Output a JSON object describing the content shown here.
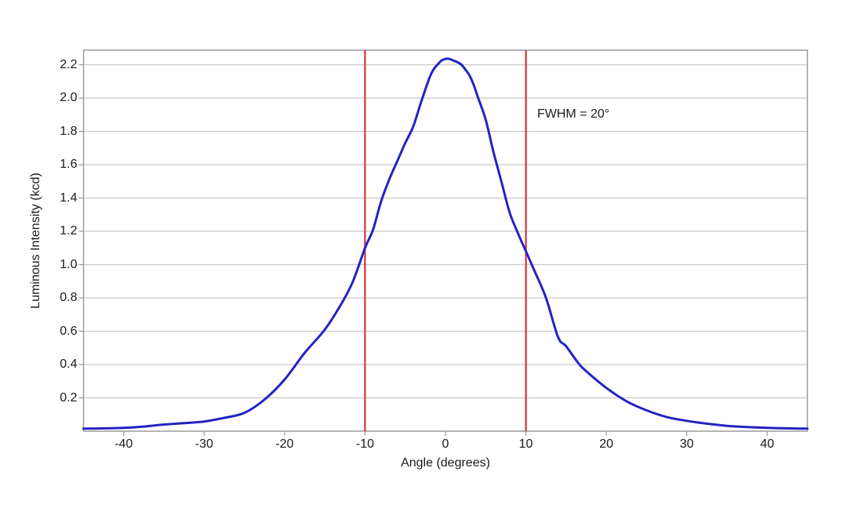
{
  "chart_data": {
    "type": "line",
    "title": "",
    "xlabel": "Angle (degrees)",
    "ylabel": "Luminous Intensity (kcd)",
    "xlim": [
      -45,
      45
    ],
    "ylim": [
      0,
      2.2875
    ],
    "grid": "horizontal-only",
    "legend": "none",
    "x_ticks": [
      -40,
      -30,
      -20,
      -10,
      0,
      10,
      20,
      30,
      40
    ],
    "x_tick_labels": [
      "-40",
      "-30",
      "-20",
      "-10",
      "0",
      "10",
      "20",
      "30",
      "40"
    ],
    "y_ticks": [
      0.2,
      0.4,
      0.6,
      0.8,
      1.0,
      1.2,
      1.4,
      1.6,
      1.8,
      2.0,
      2.2
    ],
    "y_tick_labels": [
      "0.2",
      "0.4",
      "0.6",
      "0.8",
      "1.0",
      "1.2",
      "1.4",
      "1.6",
      "1.8",
      "2.0",
      "2.2"
    ],
    "series": [
      {
        "name": "luminous-intensity-curve",
        "color": "#2323c3",
        "peak_kcd": 2.235,
        "x": [
          -45,
          -42.5,
          -40,
          -37.5,
          -35,
          -32.5,
          -30,
          -27.5,
          -25,
          -22.5,
          -20,
          -17.5,
          -15,
          -13,
          -11.5,
          -10,
          -9,
          -8,
          -7,
          -6,
          -5,
          -4,
          -3,
          -2,
          -1.5,
          -1,
          -0.5,
          0,
          0.5,
          1,
          1.5,
          2,
          2.5,
          3,
          3.5,
          4,
          5,
          6,
          7,
          8,
          9,
          10,
          11,
          12.5,
          14,
          15,
          16.5,
          17.5,
          20,
          22.5,
          25,
          27.5,
          30,
          32.5,
          35,
          37.5,
          40,
          42.5,
          45
        ],
        "y": [
          0.015,
          0.017,
          0.02,
          0.028,
          0.04,
          0.048,
          0.058,
          0.08,
          0.11,
          0.19,
          0.31,
          0.47,
          0.61,
          0.76,
          0.9,
          1.1,
          1.21,
          1.38,
          1.51,
          1.62,
          1.73,
          1.83,
          1.98,
          2.12,
          2.17,
          2.2,
          2.225,
          2.235,
          2.235,
          2.225,
          2.215,
          2.2,
          2.17,
          2.135,
          2.08,
          2.01,
          1.87,
          1.67,
          1.49,
          1.31,
          1.19,
          1.08,
          0.97,
          0.8,
          0.565,
          0.51,
          0.41,
          0.36,
          0.26,
          0.18,
          0.125,
          0.085,
          0.062,
          0.045,
          0.032,
          0.025,
          0.02,
          0.017,
          0.015
        ]
      }
    ],
    "marker_lines": {
      "name": "fwhm-boundaries",
      "color": "#d23535",
      "x_values": [
        -10,
        10
      ]
    },
    "annotations": [
      {
        "text": "FWHM = 20°"
      }
    ],
    "colors": {
      "curve": "#2323c3",
      "fwhm_line": "#d23535",
      "gridline": "#c9c9c9",
      "frame": "#9a9a9a",
      "text": "#1a1a1a",
      "background": "#ffffff"
    }
  }
}
